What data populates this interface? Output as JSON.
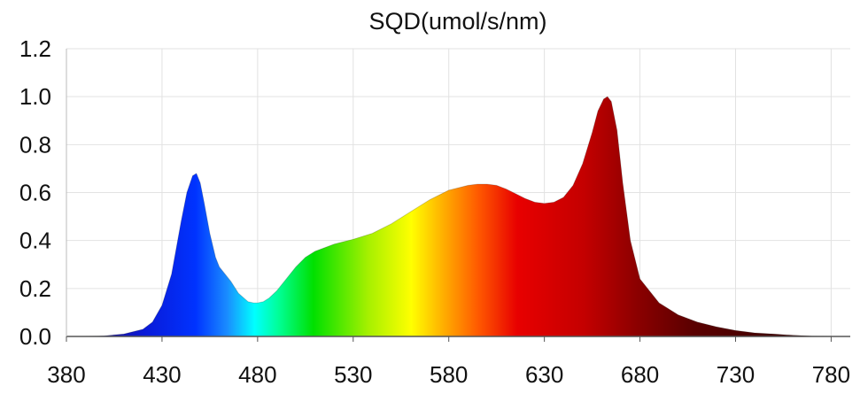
{
  "chart_data": {
    "type": "area",
    "title": "SQD(umol/s/nm)",
    "xlabel": "",
    "ylabel": "",
    "xlim": [
      380,
      790
    ],
    "ylim": [
      0,
      1.2
    ],
    "grid": true,
    "x_ticks": [
      "380",
      "430",
      "480",
      "530",
      "580",
      "630",
      "680",
      "730",
      "780"
    ],
    "y_ticks": [
      "0.0",
      "0.2",
      "0.4",
      "0.6",
      "0.8",
      "1.0",
      "1.2"
    ],
    "series": [
      {
        "name": "SQD",
        "x": [
          380,
          390,
          400,
          410,
          420,
          425,
          430,
          435,
          440,
          443,
          446,
          448,
          450,
          452,
          455,
          458,
          460,
          463,
          466,
          470,
          475,
          478,
          480,
          483,
          486,
          490,
          495,
          500,
          505,
          510,
          520,
          530,
          540,
          550,
          560,
          570,
          580,
          590,
          595,
          600,
          605,
          610,
          615,
          620,
          625,
          630,
          635,
          640,
          645,
          650,
          655,
          658,
          661,
          663,
          665,
          668,
          671,
          675,
          680,
          690,
          700,
          710,
          720,
          730,
          740,
          750,
          760,
          770,
          780,
          790
        ],
        "values": [
          0.0,
          0.0,
          0.003,
          0.01,
          0.03,
          0.06,
          0.13,
          0.26,
          0.48,
          0.6,
          0.67,
          0.68,
          0.64,
          0.56,
          0.43,
          0.33,
          0.29,
          0.26,
          0.23,
          0.18,
          0.145,
          0.14,
          0.14,
          0.145,
          0.16,
          0.19,
          0.24,
          0.29,
          0.33,
          0.355,
          0.385,
          0.405,
          0.43,
          0.47,
          0.52,
          0.57,
          0.61,
          0.63,
          0.635,
          0.635,
          0.63,
          0.615,
          0.595,
          0.575,
          0.56,
          0.555,
          0.56,
          0.58,
          0.63,
          0.72,
          0.85,
          0.94,
          0.99,
          1.0,
          0.98,
          0.86,
          0.64,
          0.4,
          0.24,
          0.14,
          0.09,
          0.06,
          0.04,
          0.025,
          0.015,
          0.01,
          0.005,
          0.002,
          0.0,
          0.0
        ]
      }
    ]
  }
}
